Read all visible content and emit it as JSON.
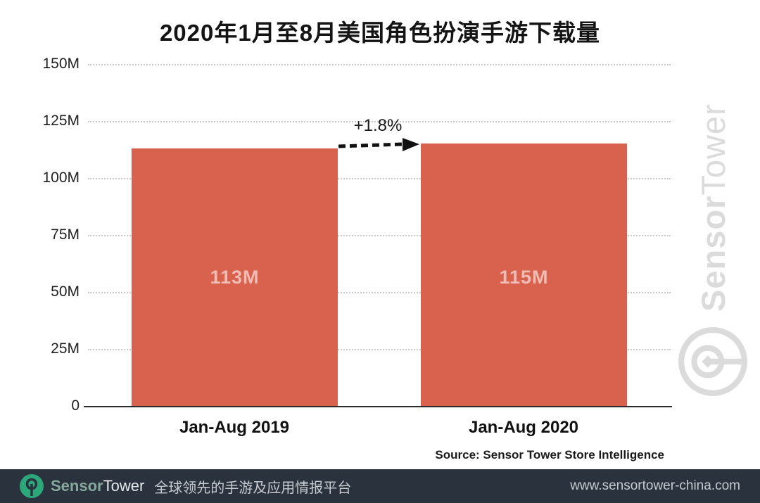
{
  "title": "2020年1月至8月美国角色扮演手游下载量",
  "chart_data": {
    "type": "bar",
    "categories": [
      "Jan-Aug 2019",
      "Jan-Aug 2020"
    ],
    "values": [
      113,
      115
    ],
    "value_labels": [
      "113M",
      "115M"
    ],
    "annotation": "+1.8%",
    "yticks": [
      "150M",
      "125M",
      "100M",
      "75M",
      "50M",
      "25M",
      "0"
    ],
    "ylim": [
      0,
      150
    ],
    "grid": "horizontal-dotted",
    "legend": "none",
    "bar_color": "#d8624d",
    "bar_label_color": "#f0bcb4"
  },
  "source": "Source: Sensor Tower Store Intelligence",
  "watermark": {
    "sensor": "Sensor",
    "tower": "Tower"
  },
  "footer": {
    "brand_sensor": "Sensor",
    "brand_tower": "Tower",
    "tagline": "全球领先的手游及应用情报平台",
    "url": "www.sensortower-china.com",
    "background": "#2a323d",
    "logo_color": "#2ba779"
  }
}
